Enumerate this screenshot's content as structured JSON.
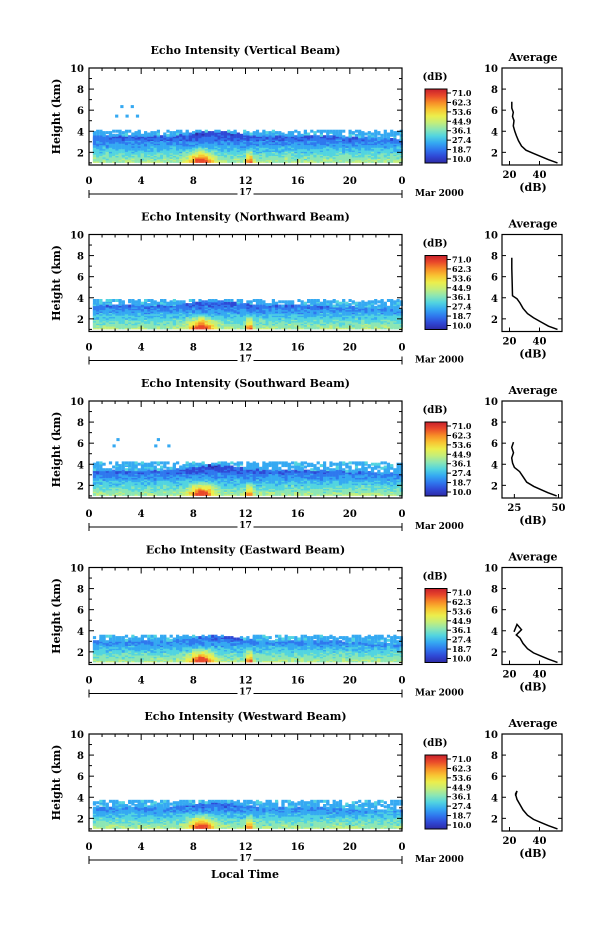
{
  "figure": {
    "xlabel": "Local Time",
    "colorbar": {
      "unit": "(dB)",
      "ticks": [
        "71.0",
        "62.3",
        "53.6",
        "44.9",
        "36.1",
        "27.4",
        "18.7",
        "10.0"
      ],
      "colors": [
        "#2d2aa6",
        "#2f49d6",
        "#2f78ee",
        "#35a9f2",
        "#52d4e0",
        "#8ce6b4",
        "#c4ee7a",
        "#ecee4c",
        "#f8c432",
        "#f78c27",
        "#e9492a",
        "#c8202c"
      ]
    }
  },
  "chart_data": [
    {
      "type": "heatmap",
      "title": "Echo Intensity (Vertical Beam)",
      "ylabel": "Height (km)",
      "x_ticks": [
        "0",
        "4",
        "8",
        "12",
        "16",
        "20",
        "0"
      ],
      "x_range": [
        0,
        24
      ],
      "y_ticks": [
        "10",
        "8",
        "6",
        "4",
        "2"
      ],
      "y_range": [
        0.8,
        10
      ],
      "date_day": "17",
      "date_label": "Mar 2000",
      "colorbar_range": [
        10,
        71
      ],
      "features": {
        "top_km": 3.4,
        "sparse_top_km": 3.9,
        "strong_cells_hr": [
          8.5,
          12.2
        ],
        "isolated_echo_km": [
          5.3,
          6.2
        ]
      },
      "average": {
        "title": "Average",
        "xlabel": "(dB)",
        "x_ticks": [
          "20",
          "40"
        ],
        "x_range": [
          15,
          55
        ],
        "y_range": [
          0.8,
          10
        ],
        "y_ticks": [
          "10",
          "8",
          "6",
          "4",
          "2"
        ],
        "profile": [
          [
            52,
            1.0
          ],
          [
            46,
            1.3
          ],
          [
            41,
            1.6
          ],
          [
            36,
            1.9
          ],
          [
            31,
            2.2
          ],
          [
            28,
            2.6
          ],
          [
            26,
            3.1
          ],
          [
            24.5,
            3.6
          ],
          [
            23.5,
            4.0
          ],
          [
            22.5,
            4.5
          ],
          [
            23,
            5.0
          ],
          [
            22,
            5.4
          ],
          [
            22.5,
            5.8
          ],
          [
            21.5,
            6.2
          ],
          [
            21.5,
            6.8
          ]
        ]
      }
    },
    {
      "type": "heatmap",
      "title": "Echo Intensity (Northward Beam)",
      "ylabel": "Height (km)",
      "x_ticks": [
        "0",
        "4",
        "8",
        "12",
        "16",
        "20",
        "0"
      ],
      "x_range": [
        0,
        24
      ],
      "y_ticks": [
        "10",
        "8",
        "6",
        "4",
        "2"
      ],
      "y_range": [
        0.8,
        10
      ],
      "date_day": "17",
      "date_label": "Mar 2000",
      "colorbar_range": [
        10,
        71
      ],
      "features": {
        "top_km": 3.1,
        "sparse_top_km": 3.6,
        "strong_cells_hr": [
          8.5,
          12.2
        ],
        "isolated_echo_km": []
      },
      "average": {
        "title": "Average",
        "xlabel": "(dB)",
        "x_ticks": [
          "20",
          "40"
        ],
        "x_range": [
          15,
          55
        ],
        "y_range": [
          0.8,
          10
        ],
        "y_ticks": [
          "10",
          "8",
          "6",
          "4",
          "2"
        ],
        "profile": [
          [
            52,
            1.0
          ],
          [
            46,
            1.3
          ],
          [
            41,
            1.7
          ],
          [
            36,
            2.1
          ],
          [
            32,
            2.5
          ],
          [
            29,
            3.0
          ],
          [
            27,
            3.5
          ],
          [
            25,
            3.9
          ],
          [
            22,
            4.2
          ],
          [
            21.5,
            6.8
          ],
          [
            21.5,
            7.8
          ]
        ]
      }
    },
    {
      "type": "heatmap",
      "title": "Echo Intensity (Southward Beam)",
      "ylabel": "Height (km)",
      "x_ticks": [
        "0",
        "4",
        "8",
        "12",
        "16",
        "20",
        "0"
      ],
      "x_range": [
        0,
        24
      ],
      "y_ticks": [
        "10",
        "8",
        "6",
        "4",
        "2"
      ],
      "y_range": [
        0.8,
        10
      ],
      "date_day": "17",
      "date_label": "Mar 2000",
      "colorbar_range": [
        10,
        71
      ],
      "features": {
        "top_km": 3.3,
        "sparse_top_km": 4.0,
        "strong_cells_hr": [
          8.5,
          12.2
        ],
        "isolated_echo_km": [
          5.6,
          6.2
        ]
      },
      "average": {
        "title": "Average",
        "xlabel": "(dB)",
        "x_ticks": [
          "25",
          "50"
        ],
        "x_range": [
          18,
          52
        ],
        "y_range": [
          0.8,
          10
        ],
        "y_ticks": [
          "10",
          "8",
          "6",
          "4",
          "2"
        ],
        "profile": [
          [
            49,
            1.0
          ],
          [
            44,
            1.3
          ],
          [
            40,
            1.6
          ],
          [
            36,
            1.9
          ],
          [
            32,
            2.3
          ],
          [
            30,
            2.8
          ],
          [
            28,
            3.3
          ],
          [
            25,
            3.7
          ],
          [
            24,
            4.1
          ],
          [
            23.5,
            4.6
          ],
          [
            24.5,
            5.1
          ],
          [
            23.5,
            5.6
          ],
          [
            24.5,
            6.1
          ]
        ]
      }
    },
    {
      "type": "heatmap",
      "title": "Echo Intensity (Eastward Beam)",
      "ylabel": "Height (km)",
      "x_ticks": [
        "0",
        "4",
        "8",
        "12",
        "16",
        "20",
        "0"
      ],
      "x_range": [
        0,
        24
      ],
      "y_ticks": [
        "10",
        "8",
        "6",
        "4",
        "2"
      ],
      "y_range": [
        0.8,
        10
      ],
      "date_day": "17",
      "date_label": "Mar 2000",
      "colorbar_range": [
        10,
        71
      ],
      "features": {
        "top_km": 2.9,
        "sparse_top_km": 3.4,
        "strong_cells_hr": [
          8.5,
          12.2
        ],
        "isolated_echo_km": []
      },
      "average": {
        "title": "Average",
        "xlabel": "(dB)",
        "x_ticks": [
          "20",
          "40"
        ],
        "x_range": [
          15,
          55
        ],
        "y_range": [
          0.8,
          10
        ],
        "y_ticks": [
          "10",
          "8",
          "6",
          "4",
          "2"
        ],
        "profile": [
          [
            52,
            1.0
          ],
          [
            46,
            1.3
          ],
          [
            41,
            1.6
          ],
          [
            36,
            1.9
          ],
          [
            32,
            2.3
          ],
          [
            29,
            2.8
          ],
          [
            27,
            3.3
          ],
          [
            24.5,
            3.6
          ],
          [
            28,
            4.1
          ],
          [
            25,
            4.6
          ],
          [
            23,
            3.9
          ]
        ]
      }
    },
    {
      "type": "heatmap",
      "title": "Echo Intensity (Westward Beam)",
      "ylabel": "Height (km)",
      "x_ticks": [
        "0",
        "4",
        "8",
        "12",
        "16",
        "20",
        "0"
      ],
      "x_range": [
        0,
        24
      ],
      "y_ticks": [
        "10",
        "8",
        "6",
        "4",
        "2"
      ],
      "y_range": [
        0.8,
        10
      ],
      "date_day": "17",
      "date_label": "Mar 2000",
      "colorbar_range": [
        10,
        71
      ],
      "features": {
        "top_km": 2.9,
        "sparse_top_km": 3.5,
        "strong_cells_hr": [
          8.5,
          12.2
        ],
        "isolated_echo_km": []
      },
      "average": {
        "title": "Average",
        "xlabel": "(dB)",
        "x_ticks": [
          "20",
          "40"
        ],
        "x_range": [
          15,
          55
        ],
        "y_range": [
          0.8,
          10
        ],
        "y_ticks": [
          "10",
          "8",
          "6",
          "4",
          "2"
        ],
        "profile": [
          [
            52,
            1.0
          ],
          [
            46,
            1.3
          ],
          [
            41,
            1.6
          ],
          [
            36,
            1.9
          ],
          [
            32,
            2.3
          ],
          [
            29,
            2.8
          ],
          [
            27,
            3.3
          ],
          [
            25,
            3.8
          ],
          [
            24,
            4.3
          ],
          [
            25,
            4.6
          ],
          [
            24,
            4.1
          ]
        ]
      }
    }
  ]
}
